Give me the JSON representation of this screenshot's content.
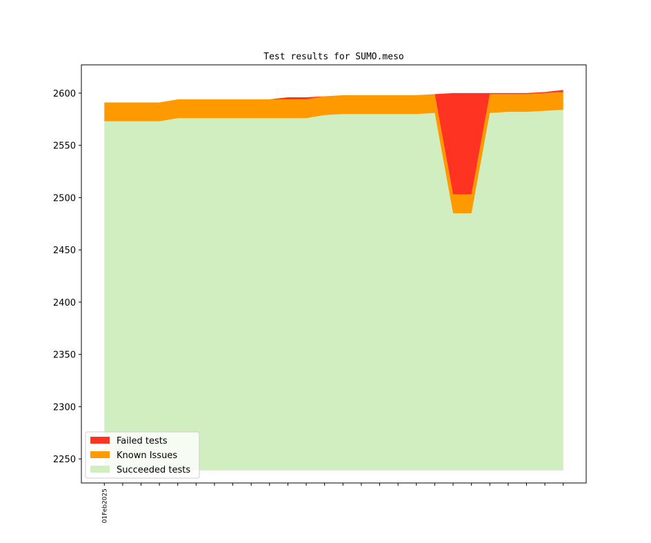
{
  "chart_data": {
    "type": "area",
    "title": "Test results for SUMO.meso",
    "xlabel": "",
    "ylabel": "",
    "ylim": [
      2227,
      2627
    ],
    "yticks": [
      2250,
      2300,
      2350,
      2400,
      2450,
      2500,
      2550,
      2600
    ],
    "x": [
      0,
      1,
      2,
      3,
      4,
      5,
      6,
      7,
      8,
      9,
      10,
      11,
      12,
      13,
      14,
      15,
      16,
      17,
      18,
      19,
      20,
      21,
      22,
      23,
      24,
      25
    ],
    "xlim": [
      -1.25,
      26.25
    ],
    "xtick_labels": [
      "01Feb2025",
      "",
      "",
      "",
      "",
      "",
      "",
      "",
      "",
      "",
      "",
      "",
      "",
      "",
      "",
      "",
      "",
      "",
      "",
      "",
      "",
      "",
      "",
      "",
      "",
      ""
    ],
    "baseline": 2239,
    "legend_position": "lower left",
    "series": [
      {
        "name": "Succeeded tests",
        "color": "#d0eec0",
        "values": [
          2573,
          2573,
          2573,
          2573,
          2576,
          2576,
          2576,
          2576,
          2576,
          2576,
          2576,
          2576,
          2579,
          2580,
          2580,
          2580,
          2580,
          2580,
          2581,
          2485,
          2485,
          2581,
          2582,
          2582,
          2583,
          2584
        ]
      },
      {
        "name": "Known Issues",
        "color": "#ff9900",
        "values": [
          18,
          18,
          18,
          18,
          18,
          18,
          18,
          18,
          18,
          18,
          18,
          18,
          18,
          18,
          18,
          18,
          18,
          18,
          18,
          18,
          18,
          18,
          17,
          17,
          17,
          17
        ]
      },
      {
        "name": "Failed tests",
        "color": "#ff3322",
        "values": [
          0,
          0,
          0,
          0,
          0,
          0,
          0,
          0,
          0,
          0,
          2,
          2,
          0,
          0,
          0,
          0,
          0,
          0,
          0,
          97,
          97,
          1,
          1,
          1,
          1,
          2
        ]
      }
    ],
    "legend": [
      "Failed tests",
      "Known Issues",
      "Succeeded tests"
    ]
  }
}
